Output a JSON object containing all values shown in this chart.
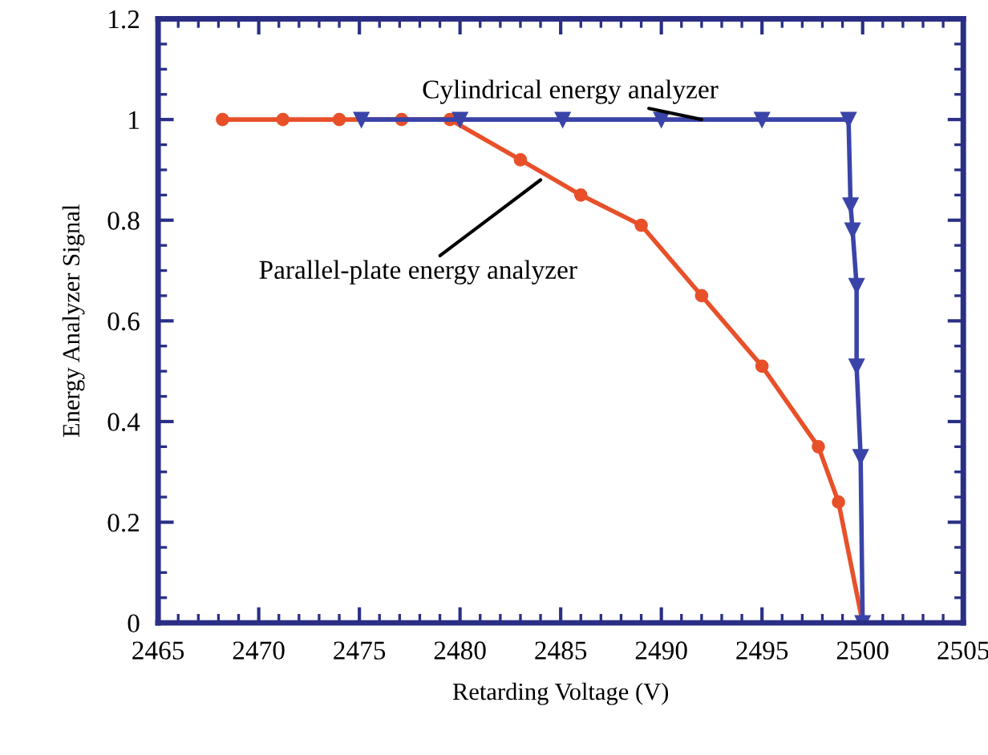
{
  "chart_data": {
    "type": "line",
    "xlabel": "Retarding Voltage (V)",
    "ylabel": "Energy Analyzer Signal",
    "xlim": [
      2465,
      2505
    ],
    "xticks": [
      2465,
      2470,
      2475,
      2480,
      2485,
      2490,
      2495,
      2500,
      2505
    ],
    "ylim": [
      0,
      1.2
    ],
    "yticks": [
      0,
      0.2,
      0.4,
      0.6,
      0.8,
      1,
      1.2
    ],
    "grid": false,
    "legend": false,
    "series": [
      {
        "color": "#e8502a",
        "marker": "circle",
        "x": [
          2468.2,
          2471.2,
          2474,
          2477.1,
          2479.5,
          2483,
          2486,
          2489,
          2492,
          2495,
          2497.8,
          2498.8,
          2500
        ],
        "values": [
          1,
          1,
          1,
          1,
          1,
          0.92,
          0.85,
          0.79,
          0.65,
          0.51,
          0.35,
          0.24,
          0
        ]
      },
      {
        "color": "#3a44a8",
        "marker": "triangle",
        "x": [
          2475.1,
          2480,
          2485.1,
          2490,
          2495,
          2499.3,
          2499.4,
          2499.5,
          2499.7,
          2499.7,
          2499.9,
          2500
        ],
        "values": [
          1,
          1,
          1,
          1,
          1,
          1,
          0.83,
          0.78,
          0.67,
          0.51,
          0.33,
          0
        ]
      }
    ],
    "annotations": [
      {
        "text": "Cylindrical energy analyzer",
        "x": 2492,
        "y": 1
      },
      {
        "text": "Parallel-plate energy analyzer",
        "x": 2484,
        "y": 0.88
      }
    ]
  }
}
